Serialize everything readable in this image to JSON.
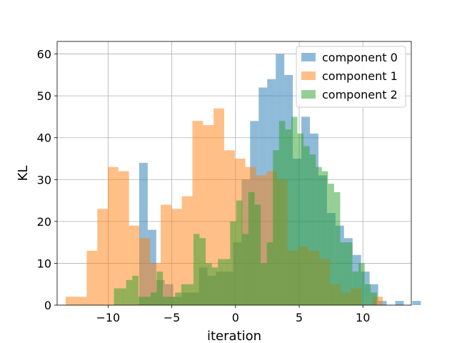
{
  "chart_data": {
    "type": "bar",
    "subtype": "overlapping-histogram",
    "xlabel": "iteration",
    "ylabel": "KL",
    "xlim": [
      -14,
      13.8
    ],
    "ylim": [
      0,
      63
    ],
    "xticks": [
      -10,
      -5,
      0,
      5,
      10
    ],
    "xtick_labels": [
      "−10",
      "−5",
      "0",
      "5",
      "10"
    ],
    "yticks": [
      0,
      10,
      20,
      30,
      40,
      50,
      60
    ],
    "grid": true,
    "legend": "top-right",
    "series": [
      {
        "name": "component 0",
        "color": "#1f77b4",
        "alpha": 0.5,
        "bin_start": -7.56,
        "bin_width": 0.67,
        "values": [
          34,
          18,
          6,
          5,
          2,
          3,
          3,
          9,
          7,
          8,
          8,
          15,
          30,
          44,
          52,
          54,
          60,
          55,
          35,
          45,
          41,
          31,
          22,
          19,
          16,
          12,
          8,
          5,
          1,
          0,
          1,
          0,
          1
        ]
      },
      {
        "name": "component 1",
        "color": "#ff7f0e",
        "alpha": 0.5,
        "bin_start": -13.34,
        "bin_width": 0.83,
        "values": [
          2,
          2,
          13,
          23,
          33,
          32,
          19,
          16,
          10,
          24,
          23,
          26,
          44,
          43,
          47,
          37,
          35,
          33,
          31,
          32,
          30,
          13,
          14,
          13,
          11,
          5,
          3,
          4,
          0,
          2
        ]
      },
      {
        "name": "component 2",
        "color": "#2ca02c",
        "alpha": 0.5,
        "bin_start": -9.54,
        "bin_width": 0.48,
        "values": [
          4,
          4,
          6,
          7,
          2,
          2,
          3,
          8,
          2,
          2,
          3,
          5,
          5,
          17,
          16,
          10,
          9,
          11,
          11,
          20,
          25,
          17,
          27,
          24,
          10,
          15,
          37,
          44,
          42,
          45,
          41,
          38,
          36,
          33,
          32,
          29,
          27,
          15,
          15,
          8,
          10,
          5,
          3
        ]
      }
    ]
  }
}
